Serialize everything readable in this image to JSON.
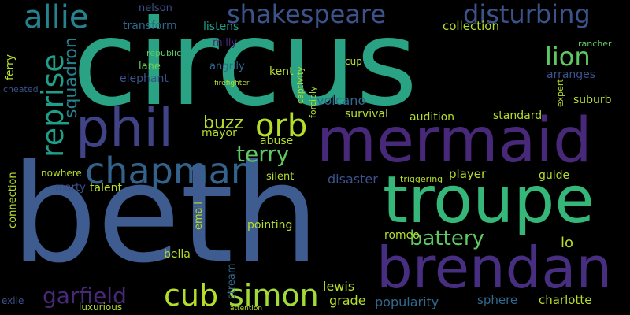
{
  "palette": {
    "purple": "#482878",
    "indigo": "#3e4a89",
    "blue": "#31688e",
    "teal": "#26828e",
    "green": "#1f9e89",
    "mint": "#35b779",
    "lime": "#6ece58",
    "yellow": "#b5de2b",
    "dark": "#440154"
  },
  "words": {
    "beth": "beth",
    "circus": "circus",
    "mermaid": "mermaid",
    "troupe": "troupe",
    "brendan": "brendan",
    "phil": "phil",
    "chapman": "chapman",
    "shakespeare": "shakespeare",
    "disturbing": "disturbing",
    "allie": "allie",
    "reprise": "reprise",
    "orb": "orb",
    "lion": "lion",
    "cub": "cub",
    "simon": "simon",
    "garfield": "garfield",
    "terry": "terry",
    "buzz": "buzz",
    "squadron": "squadron",
    "battery": "battery",
    "volcano": "volcano",
    "transform": "transform",
    "listens": "listens",
    "elephant": "elephant",
    "lane": "lane",
    "kent": "kent",
    "nelson": "nelson",
    "milly": "milly",
    "angrily": "angrily",
    "republic": "republic",
    "collection": "collection",
    "arranges": "arranges",
    "rancher": "rancher",
    "suburb": "suburb",
    "survival": "survival",
    "audition": "audition",
    "standard": "standard",
    "mayor": "mayor",
    "abuse": "abuse",
    "disaster": "disaster",
    "player": "player",
    "triggering": "triggering",
    "guide": "guide",
    "silent": "silent",
    "talent": "talent",
    "marty": "marty",
    "nowhere": "nowhere",
    "connection": "connection",
    "ferry": "ferry",
    "cheated": "cheated",
    "email": "email",
    "pointing": "pointing",
    "bella": "bella",
    "romeo": "romeo",
    "lewis": "lewis",
    "grade": "grade",
    "popularity": "popularity",
    "sphere": "sphere",
    "charlotte": "charlotte",
    "lo": "lo",
    "stream": "stream",
    "luxurious": "luxurious",
    "exile": "exile",
    "cup": "cup",
    "forcibly": "forcibly",
    "captivity": "captivity",
    "expert": "expert",
    "firefighter": "firefighter",
    "attention": "attention"
  }
}
